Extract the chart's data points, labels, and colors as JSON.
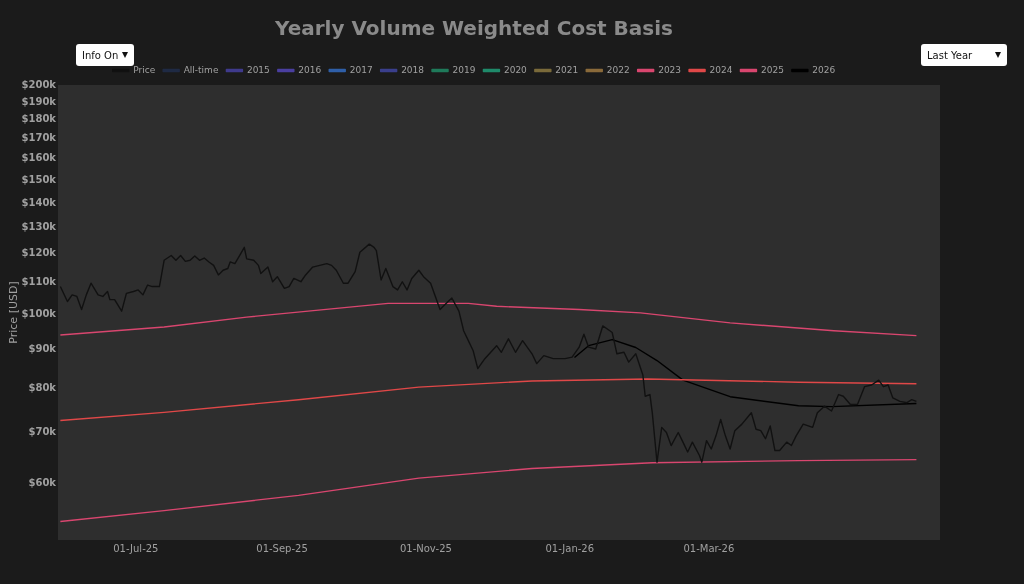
{
  "chart_data": {
    "type": "line",
    "title": "Yearly Volume Weighted Cost Basis",
    "ylabel": "Price [USD]",
    "log": "y",
    "grid": false,
    "legend": "top",
    "annotations": [
      "Info On",
      "Last Year"
    ],
    "xlim": [
      "2025-05-29",
      "2026-06-07"
    ],
    "xticks": [
      {
        "value": "2025-07-01",
        "label": "01-Jul-25"
      },
      {
        "value": "2025-09-01",
        "label": "01-Sep-25"
      },
      {
        "value": "2025-11-01",
        "label": "01-Nov-25"
      },
      {
        "value": "2026-01-01",
        "label": "01-Jan-26"
      },
      {
        "value": "2026-03-01",
        "label": "01-Mar-26"
      }
    ],
    "ylim": [
      50500,
      200000
    ],
    "yticks": [
      {
        "value": 60000,
        "label": "$60k"
      },
      {
        "value": 70000,
        "label": "$70k"
      },
      {
        "value": 80000,
        "label": "$80k"
      },
      {
        "value": 90000,
        "label": "$90k"
      },
      {
        "value": 100000,
        "label": "$100k"
      },
      {
        "value": 110000,
        "label": "$110k"
      },
      {
        "value": 120000,
        "label": "$120k"
      },
      {
        "value": 130000,
        "label": "$130k"
      },
      {
        "value": 140000,
        "label": "$140k"
      },
      {
        "value": 150000,
        "label": "$150k"
      },
      {
        "value": 160000,
        "label": "$160k"
      },
      {
        "value": 170000,
        "label": "$170k"
      },
      {
        "value": 180000,
        "label": "$180k"
      },
      {
        "value": 190000,
        "label": "$190k"
      },
      {
        "value": 200000,
        "label": "$200k"
      }
    ],
    "series": [
      {
        "name": "Price",
        "type": "line",
        "color": "#111111",
        "x": [
          "2025-05-30",
          "2025-06-02",
          "2025-06-04",
          "2025-06-06",
          "2025-06-08",
          "2025-06-10",
          "2025-06-12",
          "2025-06-15",
          "2025-06-17",
          "2025-06-19",
          "2025-06-20",
          "2025-06-22",
          "2025-06-25",
          "2025-06-27",
          "2025-06-30",
          "2025-07-02",
          "2025-07-04",
          "2025-07-06",
          "2025-07-08",
          "2025-07-11",
          "2025-07-13",
          "2025-07-16",
          "2025-07-18",
          "2025-07-20",
          "2025-07-22",
          "2025-07-24",
          "2025-07-26",
          "2025-07-28",
          "2025-07-30",
          "2025-08-01",
          "2025-08-03",
          "2025-08-05",
          "2025-08-07",
          "2025-08-09",
          "2025-08-10",
          "2025-08-12",
          "2025-08-14",
          "2025-08-16",
          "2025-08-17",
          "2025-08-20",
          "2025-08-22",
          "2025-08-23",
          "2025-08-26",
          "2025-08-28",
          "2025-08-30",
          "2025-09-02",
          "2025-09-04",
          "2025-09-06",
          "2025-09-09",
          "2025-09-11",
          "2025-09-14",
          "2025-09-17",
          "2025-09-20",
          "2025-09-22",
          "2025-09-24",
          "2025-09-27",
          "2025-09-29",
          "2025-10-02",
          "2025-10-04",
          "2025-10-08",
          "2025-10-10",
          "2025-10-11",
          "2025-10-13",
          "2025-10-15",
          "2025-10-18",
          "2025-10-20",
          "2025-10-22",
          "2025-10-24",
          "2025-10-26",
          "2025-10-29",
          "2025-10-31",
          "2025-11-03",
          "2025-11-07",
          "2025-11-09",
          "2025-11-12",
          "2025-11-15",
          "2025-11-17",
          "2025-11-19",
          "2025-11-21",
          "2025-11-23",
          "2025-11-26",
          "2025-12-01",
          "2025-12-03",
          "2025-12-06",
          "2025-12-09",
          "2025-12-12",
          "2025-12-16",
          "2025-12-18",
          "2025-12-21",
          "2025-12-25",
          "2025-12-30",
          "2026-01-02",
          "2026-01-05",
          "2026-01-07",
          "2026-01-09",
          "2026-01-12",
          "2026-01-15",
          "2026-01-18",
          "2026-01-19",
          "2026-01-21",
          "2026-01-24",
          "2026-01-26",
          "2026-01-29",
          "2026-02-01",
          "2026-02-02",
          "2026-02-04",
          "2026-02-05",
          "2026-02-07",
          "2026-02-09",
          "2026-02-11",
          "2026-02-13",
          "2026-02-16",
          "2026-02-18",
          "2026-02-20",
          "2026-02-22",
          "2026-02-25",
          "2026-02-26",
          "2026-02-28",
          "2026-03-02",
          "2026-03-04",
          "2026-03-06",
          "2026-03-08",
          "2026-03-10",
          "2026-03-12",
          "2026-03-15",
          "2026-03-19",
          "2026-03-21",
          "2026-03-23",
          "2026-03-25",
          "2026-03-27",
          "2026-03-29",
          "2026-03-31",
          "2026-04-03",
          "2026-04-05",
          "2026-04-07",
          "2026-04-10",
          "2026-04-14",
          "2026-04-16",
          "2026-04-19",
          "2026-04-22",
          "2026-04-25",
          "2026-04-27",
          "2026-04-30",
          "2026-05-03",
          "2026-05-06",
          "2026-05-09",
          "2026-05-12",
          "2026-05-14",
          "2026-05-16",
          "2026-05-18",
          "2026-05-21",
          "2026-05-24",
          "2026-05-26",
          "2026-05-28"
        ],
        "values": [
          108700,
          103900,
          106000,
          105500,
          101400,
          106000,
          109800,
          106000,
          105500,
          107100,
          104500,
          104500,
          100900,
          106500,
          107100,
          107600,
          106000,
          109200,
          108700,
          108700,
          117700,
          119400,
          117700,
          119400,
          117300,
          117700,
          119200,
          117700,
          118500,
          117100,
          115900,
          112600,
          114200,
          114800,
          117100,
          116500,
          119400,
          122400,
          118200,
          117700,
          115900,
          113100,
          115300,
          110300,
          112000,
          108100,
          108700,
          111400,
          110300,
          112600,
          115300,
          115900,
          116500,
          115900,
          114200,
          109800,
          109800,
          113700,
          120600,
          123600,
          122400,
          121200,
          110900,
          114800,
          108700,
          107600,
          110300,
          107600,
          111400,
          114200,
          112000,
          109800,
          101400,
          102900,
          105000,
          100900,
          95100,
          92300,
          89600,
          84800,
          87400,
          90900,
          89100,
          92800,
          89100,
          92300,
          88700,
          86100,
          88200,
          87400,
          87400,
          87800,
          90500,
          94100,
          90500,
          90000,
          96500,
          95100,
          94600,
          88700,
          89100,
          86500,
          88700,
          83200,
          78000,
          78400,
          74200,
          63900,
          71000,
          69900,
          67200,
          69900,
          67900,
          65900,
          67900,
          65200,
          63900,
          68200,
          66500,
          69200,
          72700,
          69200,
          66500,
          70300,
          71700,
          74200,
          70600,
          70300,
          68600,
          71300,
          66200,
          66200,
          67900,
          67200,
          69200,
          71700,
          71000,
          74200,
          75700,
          74600,
          78400,
          78000,
          76100,
          76100,
          80300,
          80700,
          81900,
          80300,
          80700,
          77600,
          76800,
          76500,
          77200,
          76800
        ]
      },
      {
        "name": "All-time",
        "type": "line",
        "color": "#1f2a44"
      },
      {
        "name": "2015",
        "type": "line",
        "color": "#3f3a8c"
      },
      {
        "name": "2016",
        "type": "line",
        "color": "#4a3fa0"
      },
      {
        "name": "2017",
        "type": "line",
        "color": "#2f5fa8"
      },
      {
        "name": "2018",
        "type": "line",
        "color": "#3a3f8c"
      },
      {
        "name": "2019",
        "type": "line",
        "color": "#1f7a5a"
      },
      {
        "name": "2020",
        "type": "line",
        "color": "#1f8a6a"
      },
      {
        "name": "2021",
        "type": "line",
        "color": "#7a6a3a"
      },
      {
        "name": "2022",
        "type": "line",
        "color": "#8a6a3a"
      },
      {
        "name": "2023",
        "type": "line",
        "color": "#d9466f",
        "x": [
          "2025-05-30",
          "2025-07-13",
          "2025-09-08",
          "2025-10-29",
          "2025-12-16",
          "2026-02-05",
          "2026-04-08",
          "2026-05-28"
        ],
        "values": [
          53400,
          55200,
          57800,
          60900,
          62700,
          63800,
          64200,
          64400
        ]
      },
      {
        "name": "2024",
        "type": "line",
        "color": "#e04848",
        "x": [
          "2025-05-30",
          "2025-07-13",
          "2025-09-08",
          "2025-10-29",
          "2025-12-16",
          "2026-02-03",
          "2026-04-08",
          "2026-05-28"
        ],
        "values": [
          72500,
          74300,
          77200,
          80200,
          81700,
          82200,
          81400,
          81000
        ]
      },
      {
        "name": "2025",
        "type": "line",
        "color": "#d9466f",
        "x": [
          "2025-05-30",
          "2025-07-13",
          "2025-08-17",
          "2025-10-16",
          "2025-11-19",
          "2025-12-01",
          "2026-01-05",
          "2026-01-31",
          "2026-03-10",
          "2026-04-23",
          "2026-05-28"
        ],
        "values": [
          93900,
          96200,
          99100,
          103300,
          103300,
          102400,
          101400,
          100400,
          97400,
          95100,
          93700
        ]
      },
      {
        "name": "2026",
        "type": "line",
        "color": "#000000",
        "x": [
          "2026-01-03",
          "2026-01-09",
          "2026-01-19",
          "2026-01-29",
          "2026-02-07",
          "2026-02-18",
          "2026-03-10",
          "2026-04-08",
          "2026-04-22",
          "2026-05-28"
        ],
        "values": [
          87700,
          90900,
          92600,
          90400,
          86900,
          81900,
          77900,
          75800,
          75600,
          76300
        ]
      }
    ]
  }
}
